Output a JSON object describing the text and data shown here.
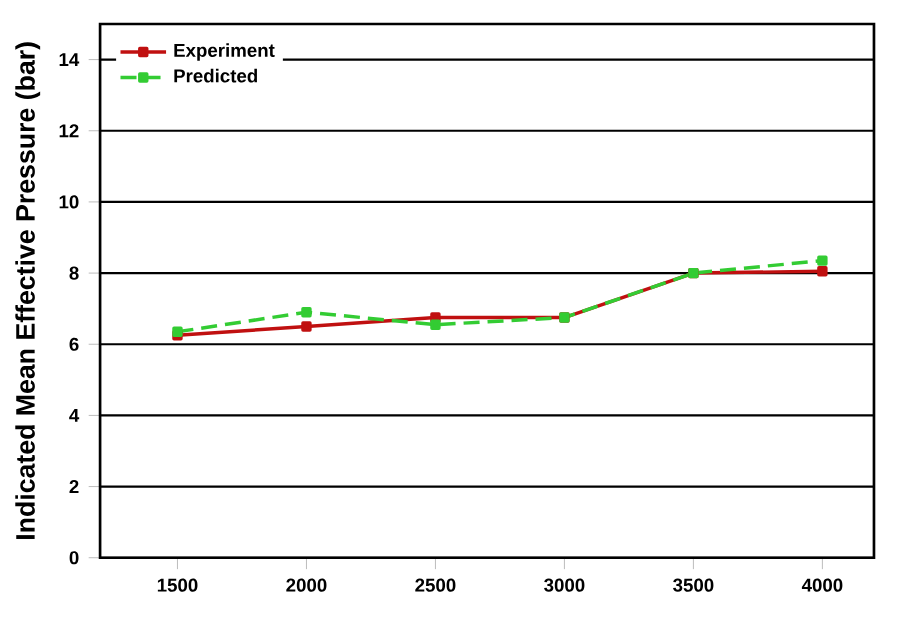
{
  "chart_data": {
    "type": "line",
    "ylabel": "Indicated Mean Effective  Pressure (bar)",
    "x": [
      1500,
      2000,
      2500,
      3000,
      3500,
      4000
    ],
    "series": [
      {
        "name": "Experiment",
        "color": "#c01010",
        "values": [
          6.25,
          6.5,
          6.75,
          6.75,
          8.0,
          8.05
        ],
        "line_style": "solid"
      },
      {
        "name": "Predicted",
        "color": "#33cc33",
        "values": [
          6.35,
          6.9,
          6.55,
          6.75,
          8.0,
          8.35
        ],
        "line_style": "dashed"
      }
    ],
    "xlim": [
      1200,
      4200
    ],
    "ylim": [
      0,
      15
    ],
    "xticks": [
      1500,
      2000,
      2500,
      3000,
      3500,
      4000
    ],
    "yticks": [
      0,
      2,
      4,
      6,
      8,
      10,
      12,
      14
    ],
    "grid": "y",
    "legend": "top left",
    "marker": "square"
  }
}
